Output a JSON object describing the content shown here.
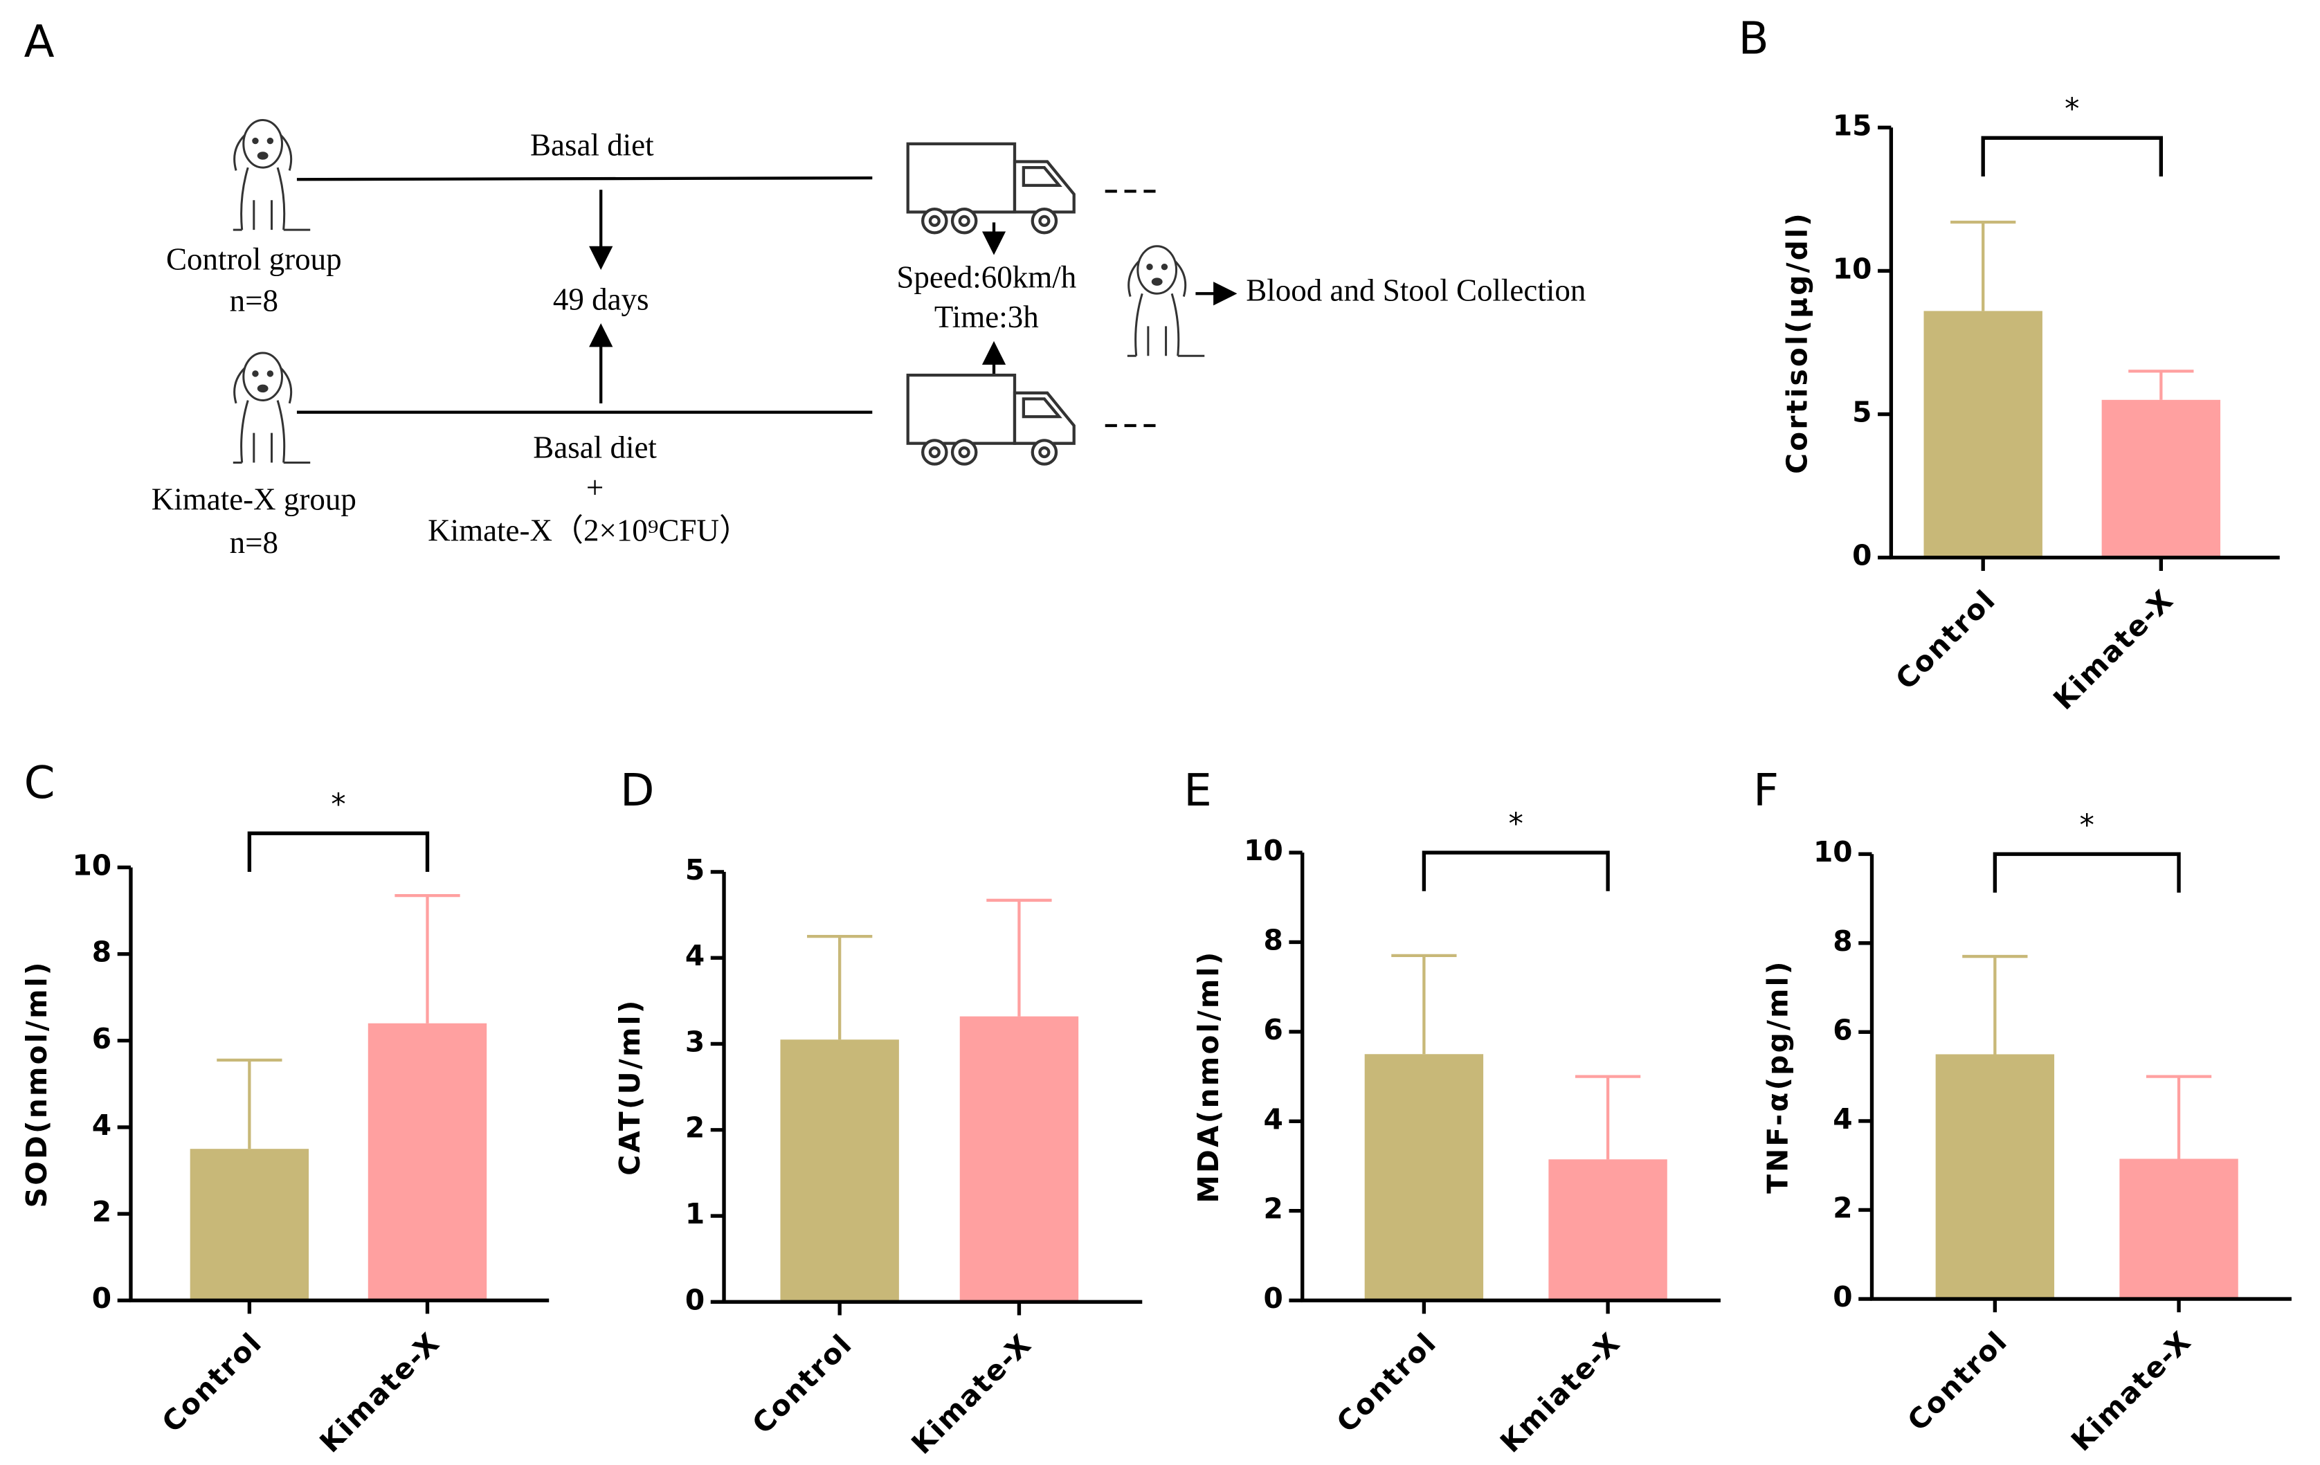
{
  "diagram": {
    "label": "A",
    "control_diet": "Basal diet",
    "control_group": "Control group",
    "control_n": "n=8",
    "duration": "49 days",
    "treat_diet": "Basal diet",
    "treat_plus": "+",
    "treat_supplement": "Kimate-X（2×10⁹CFU）",
    "treat_group": "Kimate-X group",
    "treat_n": "n=8",
    "speed": "Speed:60km/h",
    "time": "Time:3h",
    "collection": "Blood and Stool Collection"
  },
  "chart_data": [
    {
      "type": "bar",
      "label": "B",
      "ylabel": "Cortisol(μg/dl)",
      "categories": [
        "Control",
        "Kimate-X"
      ],
      "values": [
        8.6,
        5.5
      ],
      "errors": [
        3.1,
        1.0
      ],
      "colors": [
        "#c8b878",
        "#ffa0a0"
      ],
      "ylim": [
        0,
        15
      ],
      "yticks": [
        0,
        5,
        10,
        15
      ],
      "significance": "*"
    },
    {
      "type": "bar",
      "label": "C",
      "ylabel": "SOD(nmol/ml)",
      "categories": [
        "Control",
        "Kimate-X"
      ],
      "values": [
        3.5,
        6.4
      ],
      "errors": [
        2.05,
        2.95
      ],
      "colors": [
        "#c8b878",
        "#ffa0a0"
      ],
      "ylim": [
        0,
        10
      ],
      "yticks": [
        0,
        2,
        4,
        6,
        8,
        10
      ],
      "significance": "*"
    },
    {
      "type": "bar",
      "label": "D",
      "ylabel": "CAT(U/ml)",
      "categories": [
        "Control",
        "Kimate-X"
      ],
      "values": [
        3.05,
        3.32
      ],
      "errors": [
        1.2,
        1.35
      ],
      "colors": [
        "#c8b878",
        "#ffa0a0"
      ],
      "ylim": [
        0,
        5
      ],
      "yticks": [
        0,
        1,
        2,
        3,
        4,
        5
      ]
    },
    {
      "type": "bar",
      "label": "E",
      "ylabel": "MDA(nmol/ml)",
      "categories": [
        "Control",
        "Kmiate-X"
      ],
      "values": [
        5.5,
        3.15
      ],
      "errors": [
        2.2,
        1.85
      ],
      "colors": [
        "#c8b878",
        "#ffa0a0"
      ],
      "ylim": [
        0,
        10
      ],
      "yticks": [
        0,
        2,
        4,
        6,
        8,
        10
      ],
      "significance": "*"
    },
    {
      "type": "bar",
      "label": "F",
      "ylabel": "TNF-α(pg/ml)",
      "categories": [
        "Control",
        "Kimate-X"
      ],
      "values": [
        5.5,
        3.15
      ],
      "errors": [
        2.2,
        1.85
      ],
      "colors": [
        "#c8b878",
        "#ffa0a0"
      ],
      "ylim": [
        0,
        10
      ],
      "yticks": [
        0,
        2,
        4,
        6,
        8,
        10
      ],
      "significance": "*"
    }
  ]
}
